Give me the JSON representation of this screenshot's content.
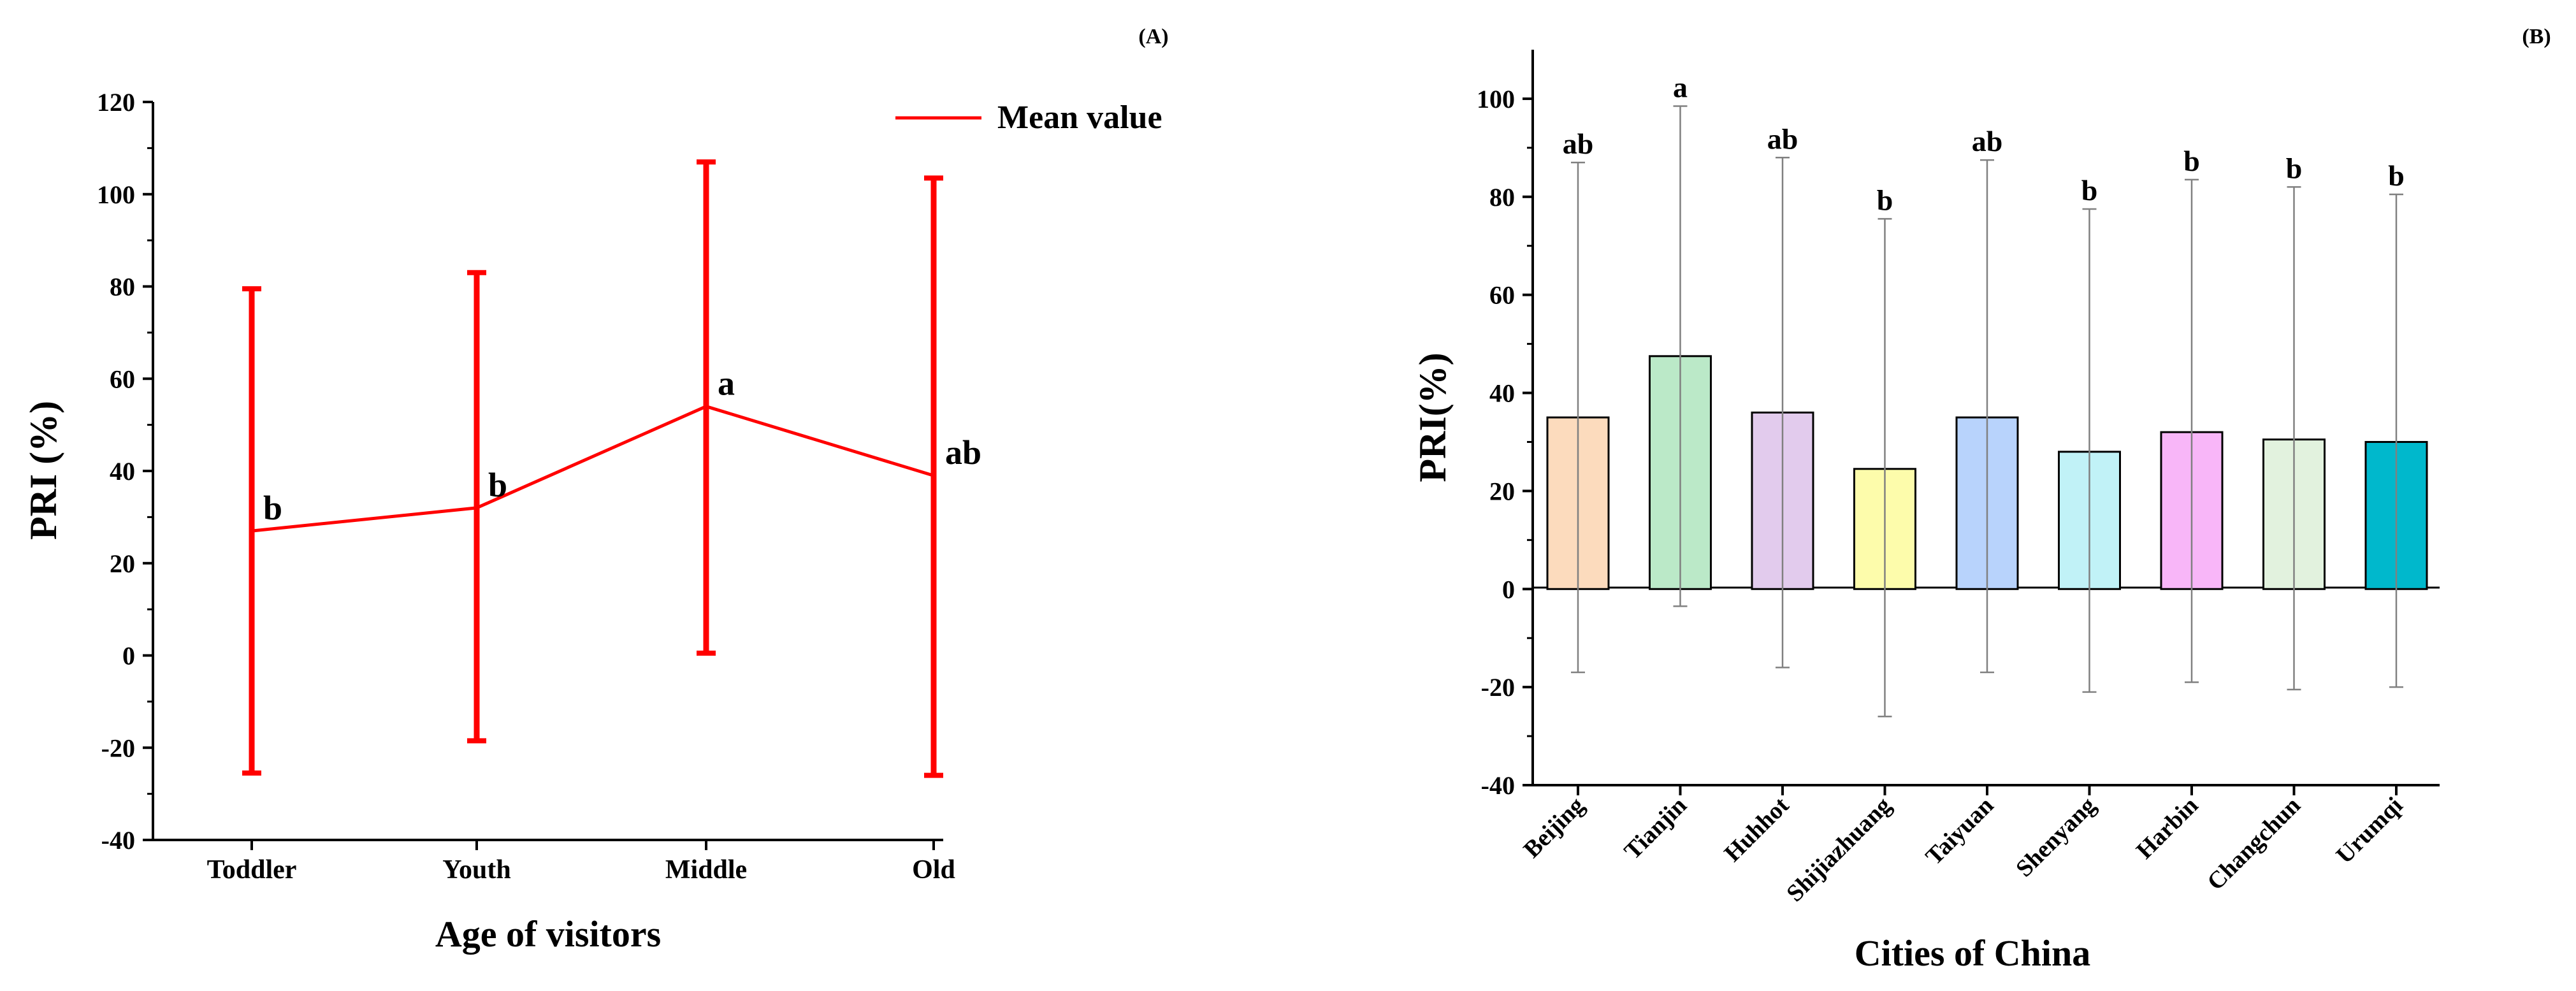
{
  "chart_data": [
    {
      "panel_label": "(A)",
      "type": "line",
      "xlabel": "Age of visitors",
      "ylabel": "PRI (%)",
      "ylim": [
        -40,
        120
      ],
      "yticks": [
        -40,
        -20,
        0,
        20,
        40,
        60,
        80,
        100,
        120
      ],
      "categories": [
        "Toddler",
        "Youth",
        "Middle",
        "Old"
      ],
      "legend": {
        "label": "Mean value",
        "position": "top-right"
      },
      "series": [
        {
          "name": "Mean value",
          "color": "#ff0000",
          "values": [
            27,
            32,
            54,
            39
          ],
          "error_low": [
            -25.5,
            -18.5,
            0.5,
            -26
          ],
          "error_high": [
            79.5,
            83,
            107,
            103.5
          ],
          "annotations": [
            "b",
            "b",
            "a",
            "ab"
          ]
        }
      ]
    },
    {
      "panel_label": "(B)",
      "type": "bar",
      "xlabel": "Cities of China",
      "ylabel": "PRI(%)",
      "ylim": [
        -40,
        110
      ],
      "yticks": [
        -40,
        -20,
        0,
        20,
        40,
        60,
        80,
        100
      ],
      "categories": [
        "Beijing",
        "Tianjin",
        "Huhhot",
        "Shijiazhuang",
        "Taiyuan",
        "Shenyang",
        "Harbin",
        "Changchun",
        "Urumqi"
      ],
      "values": [
        35,
        47.5,
        36,
        24.5,
        35,
        28,
        32,
        30.5,
        30
      ],
      "error_low": [
        -17,
        -3.5,
        -16,
        -26,
        -17,
        -21,
        -19,
        -20.5,
        -20
      ],
      "error_high": [
        87,
        98.5,
        88,
        75.5,
        87.5,
        77.5,
        83.5,
        82,
        80.5
      ],
      "annotations": [
        "ab",
        "a",
        "ab",
        "b",
        "ab",
        "b",
        "b",
        "b",
        "b"
      ],
      "colors": [
        "#fcdbbd",
        "#bbe9c8",
        "#e2cbed",
        "#fdfcab",
        "#b8d3fc",
        "#c1f2f7",
        "#f8b6f8",
        "#e2f2de",
        "#00b8cc"
      ]
    }
  ]
}
